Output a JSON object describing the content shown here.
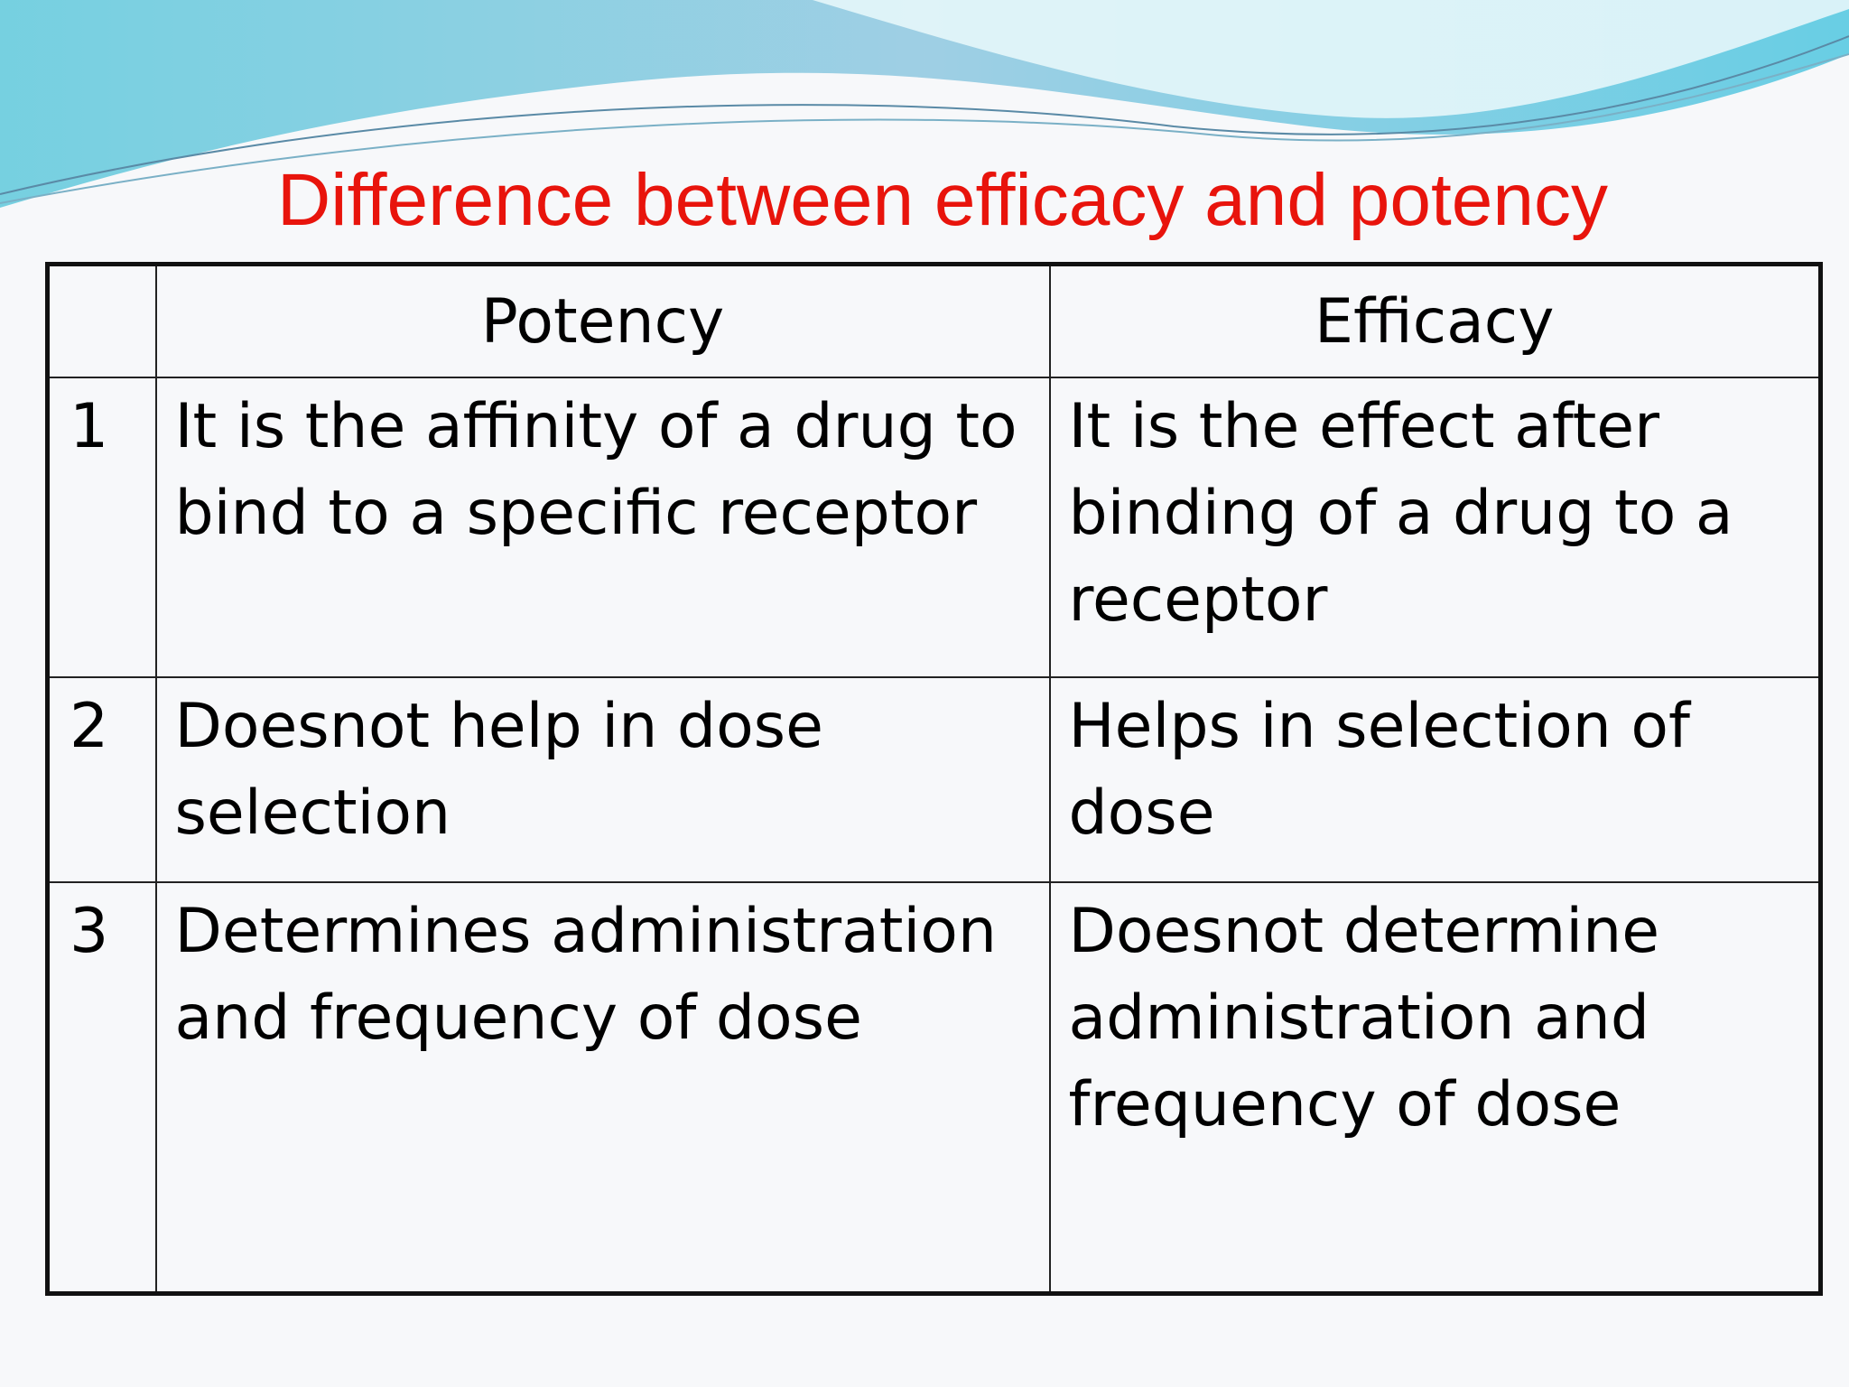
{
  "title": "Difference between efficacy and potency",
  "table": {
    "header": [
      "Potency",
      "Efficacy"
    ],
    "rows": [
      [
        "1",
        "It is the affinity of a drug to bind to a specific receptor",
        "It is the effect after binding of a drug to a receptor"
      ],
      [
        "2",
        "Doesnot help in dose selection",
        "Helps in selection of dose"
      ],
      [
        "3",
        "Determines administration and frequency of dose",
        "Doesnot determine administration and frequency of dose"
      ]
    ]
  }
}
